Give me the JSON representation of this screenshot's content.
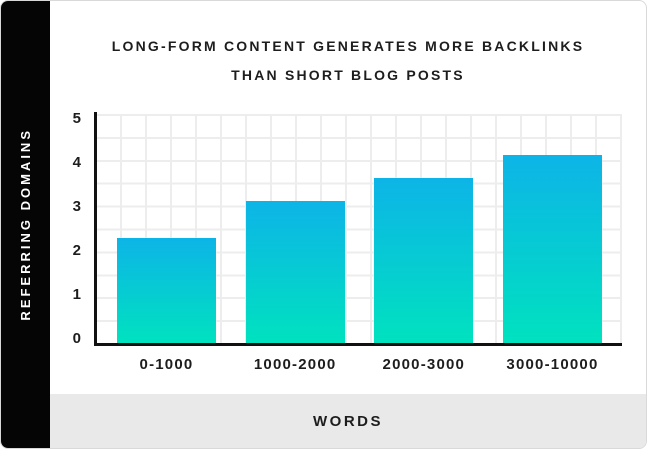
{
  "title": {
    "line1": "LONG-FORM CONTENT GENERATES MORE BACKLINKS",
    "line2": "THAN SHORT BLOG POSTS"
  },
  "chart_data": {
    "type": "bar",
    "title": "LONG-FORM CONTENT GENERATES MORE BACKLINKS THAN SHORT BLOG POSTS",
    "title_lines": [
      "LONG-FORM CONTENT GENERATES MORE BACKLINKS",
      "THAN SHORT BLOG POSTS"
    ],
    "categories": [
      "0-1000",
      "1000-2000",
      "2000-3000",
      "3000-10000"
    ],
    "values": [
      2.3,
      3.1,
      3.6,
      4.1
    ],
    "xlabel": "WORDS",
    "ylabel": "REFERRING DOMAINS",
    "ylim": [
      0,
      5
    ],
    "yticks": [
      5,
      4,
      3,
      2,
      1,
      0
    ],
    "grid": true,
    "legend_position": "none"
  },
  "colors": {
    "bar_gradient_top": "#0db4e7",
    "bar_gradient_bottom": "#00e2bf",
    "sidebar_bg": "#050505",
    "footer_bg": "#e9e9e9",
    "text": "#1d1d1d",
    "grid_line": "#ededed",
    "axis_line": "#111111",
    "card_border": "#d9d9d9",
    "background": "#ffffff"
  }
}
